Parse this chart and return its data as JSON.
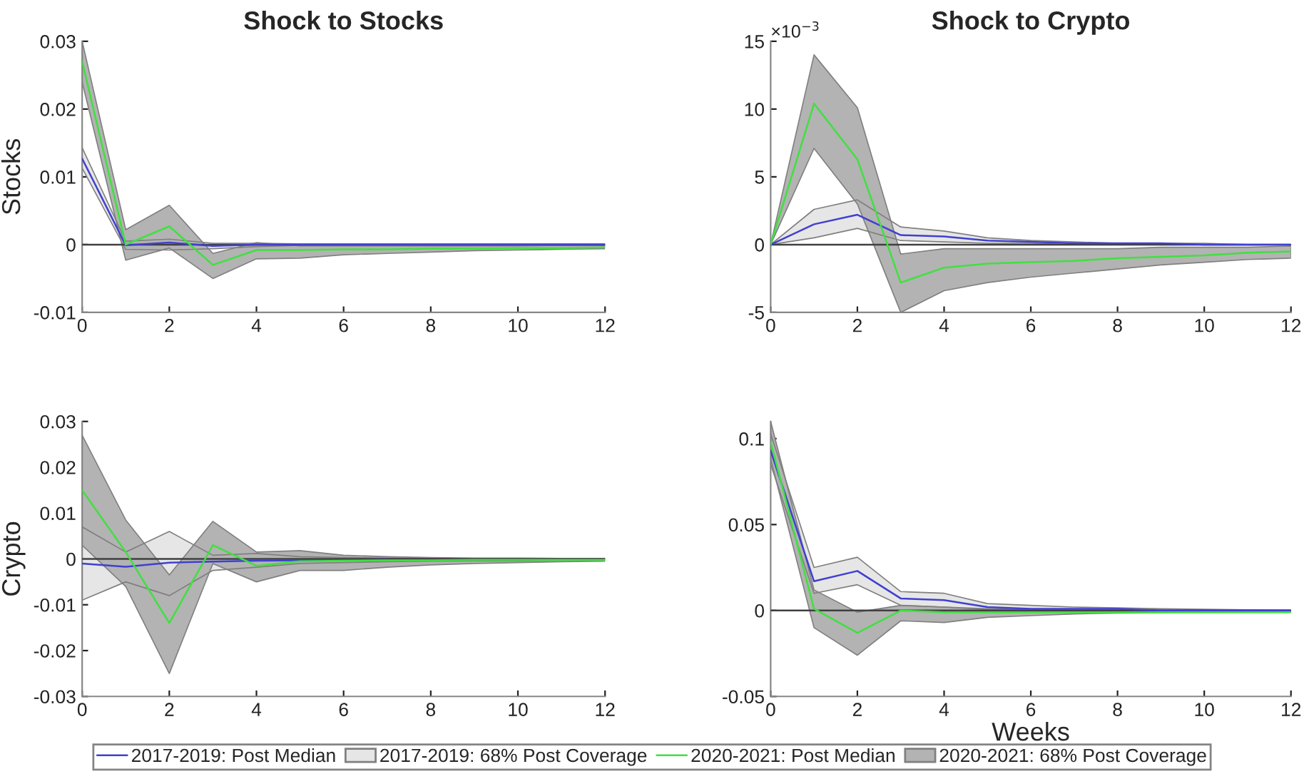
{
  "chart_data": [
    {
      "type": "line",
      "title": "Shock to Stocks",
      "ylabel": "Stocks",
      "x": [
        0,
        1,
        2,
        3,
        4,
        5,
        6,
        7,
        8,
        9,
        10,
        11,
        12
      ],
      "xlim": [
        0,
        12
      ],
      "xticks": [
        0,
        2,
        4,
        6,
        8,
        10,
        12
      ],
      "ylim": [
        -0.01,
        0.03
      ],
      "yticks": [
        -0.01,
        0,
        0.01,
        0.02,
        0.03
      ],
      "legend": "bottom",
      "grid": false,
      "ref_lines": [
        {
          "axis": "y",
          "value": 0,
          "color": "#404040"
        }
      ],
      "series": [
        {
          "name": "2017-2019: Post Median",
          "type": "line",
          "color": "#4040d0",
          "values": [
            0.0127,
            -0.0001,
            0.0003,
            -0.0002,
            0,
            0,
            0,
            0,
            0,
            0,
            0,
            0,
            0
          ],
          "lower": [
            0.0113,
            -0.0007,
            -0.0008,
            -0.0006,
            -0.0003,
            -0.0001,
            -0.0001,
            -0.0001,
            -0.0001,
            -0.0001,
            -0.0001,
            -0.0001,
            -0.0001
          ],
          "upper": [
            0.0143,
            0.0005,
            0.0008,
            0.0002,
            0.0002,
            0.0001,
            0.0001,
            0.0001,
            0.0001,
            0.0001,
            0.0001,
            0.0001,
            0.0001
          ]
        },
        {
          "name": "2017-2019: 68% Post Coverage",
          "type": "area",
          "color": "#e6e6e6",
          "values": [
            null,
            null,
            null,
            null,
            null,
            null,
            null,
            null,
            null,
            null,
            null,
            null,
            null
          ]
        },
        {
          "name": "2020-2021: Post Median",
          "type": "line",
          "color": "#40e040",
          "values": [
            0.027,
            0.0,
            0.0027,
            -0.003,
            -0.0008,
            -0.0008,
            -0.0007,
            -0.0007,
            -0.0006,
            -0.0006,
            -0.0005,
            -0.0005,
            -0.0004
          ],
          "lower": [
            0.024,
            -0.0023,
            -0.0005,
            -0.005,
            -0.0021,
            -0.002,
            -0.0015,
            -0.0013,
            -0.0011,
            -0.0009,
            -0.0008,
            -0.0007,
            -0.0006
          ],
          "upper": [
            0.03,
            0.0022,
            0.0058,
            -0.0013,
            0.0003,
            -0.0002,
            -0.0002,
            -0.0002,
            -0.0002,
            -0.0002,
            -0.0002,
            -0.0001,
            -0.0001
          ]
        },
        {
          "name": "2020-2021: 68% Post Coverage",
          "type": "area",
          "color": "#b3b3b3",
          "values": [
            null,
            null,
            null,
            null,
            null,
            null,
            null,
            null,
            null,
            null,
            null,
            null,
            null
          ]
        }
      ]
    },
    {
      "type": "line",
      "title": "Shock to Crypto",
      "x": [
        0,
        1,
        2,
        3,
        4,
        5,
        6,
        7,
        8,
        9,
        10,
        11,
        12
      ],
      "xlim": [
        0,
        12
      ],
      "xticks": [
        0,
        2,
        4,
        6,
        8,
        10,
        12
      ],
      "ylim": [
        -5,
        15
      ],
      "yticks": [
        -5,
        0,
        5,
        10,
        15
      ],
      "annotations": [
        "×10$^{−3}$"
      ],
      "grid": false,
      "ref_lines": [
        {
          "axis": "y",
          "value": 0,
          "color": "#404040"
        }
      ],
      "series": [
        {
          "type": "line",
          "color": "#4040d0",
          "values": [
            0,
            1.5,
            2.2,
            0.7,
            0.6,
            0.3,
            0.2,
            0.1,
            0.1,
            0.1,
            0,
            0,
            0
          ],
          "lower": [
            0,
            0.5,
            1.2,
            0.3,
            0.2,
            0.1,
            0.1,
            0,
            0,
            0,
            0,
            0,
            0
          ],
          "upper": [
            0,
            2.6,
            3.3,
            1.3,
            1.0,
            0.5,
            0.3,
            0.2,
            0.1,
            0.1,
            0.1,
            0,
            0
          ]
        },
        {
          "type": "area",
          "color": "#e6e6e6",
          "values": [
            null,
            null,
            null,
            null,
            null,
            null,
            null,
            null,
            null,
            null,
            null,
            null,
            null
          ]
        },
        {
          "type": "line",
          "color": "#40e040",
          "values": [
            0,
            10.4,
            6.3,
            -2.8,
            -1.7,
            -1.4,
            -1.3,
            -1.2,
            -1.0,
            -0.9,
            -0.8,
            -0.6,
            -0.5
          ],
          "lower": [
            0,
            7.1,
            3.0,
            -5.0,
            -3.4,
            -2.8,
            -2.4,
            -2.1,
            -1.8,
            -1.5,
            -1.3,
            -1.1,
            -1.0
          ],
          "upper": [
            0,
            14.0,
            10.1,
            -0.7,
            -0.3,
            -0.3,
            -0.3,
            -0.3,
            -0.3,
            -0.2,
            -0.2,
            -0.2,
            -0.1
          ]
        },
        {
          "type": "area",
          "color": "#b3b3b3",
          "values": [
            null,
            null,
            null,
            null,
            null,
            null,
            null,
            null,
            null,
            null,
            null,
            null,
            null
          ]
        }
      ]
    },
    {
      "type": "line",
      "ylabel": "Crypto",
      "x": [
        0,
        1,
        2,
        3,
        4,
        5,
        6,
        7,
        8,
        9,
        10,
        11,
        12
      ],
      "xlim": [
        0,
        12
      ],
      "xticks": [
        0,
        2,
        4,
        6,
        8,
        10,
        12
      ],
      "ylim": [
        -0.03,
        0.03
      ],
      "yticks": [
        -0.03,
        -0.02,
        -0.01,
        0,
        0.01,
        0.02,
        0.03
      ],
      "grid": false,
      "ref_lines": [
        {
          "axis": "y",
          "value": 0,
          "color": "#404040"
        }
      ],
      "series": [
        {
          "type": "line",
          "color": "#4040d0",
          "values": [
            -0.001,
            -0.0017,
            -0.0008,
            -0.0006,
            -0.0004,
            -0.0003,
            -0.0003,
            -0.0002,
            null,
            null,
            null,
            null,
            null
          ],
          "lower": [
            -0.009,
            -0.005,
            -0.008,
            -0.0025,
            -0.0018,
            -0.001,
            -0.0008,
            -0.0006,
            -0.0005,
            -0.0004,
            -0.0004,
            -0.0003,
            -0.0003
          ],
          "upper": [
            0.007,
            0.0015,
            0.006,
            0.0008,
            0.0012,
            0.0005,
            0.0003,
            0.0002,
            0.0001,
            0.0001,
            0.0001,
            0.0001,
            0.0001
          ]
        },
        {
          "type": "area",
          "color": "#e6e6e6",
          "values": [
            null,
            null,
            null,
            null,
            null,
            null,
            null,
            null,
            null,
            null,
            null,
            null,
            null
          ]
        },
        {
          "type": "line",
          "color": "#40e040",
          "values": [
            0.015,
            0.0015,
            -0.014,
            0.003,
            -0.0015,
            -0.0005,
            -0.0004,
            -0.0003,
            -0.0003,
            -0.0002,
            -0.0002,
            -0.0002,
            -0.0002
          ],
          "lower": [
            0.003,
            -0.006,
            -0.025,
            -0.001,
            -0.005,
            -0.0025,
            -0.0025,
            -0.0018,
            -0.0013,
            -0.001,
            -0.0008,
            -0.0006,
            -0.0005
          ],
          "upper": [
            0.027,
            0.0085,
            -0.0035,
            0.0082,
            0.0015,
            0.0018,
            0.0008,
            0.0005,
            0.0003,
            0.0002,
            0.0002,
            0.0001,
            0.0001
          ]
        },
        {
          "type": "area",
          "color": "#b3b3b3",
          "values": [
            null,
            null,
            null,
            null,
            null,
            null,
            null,
            null,
            null,
            null,
            null,
            null,
            null
          ]
        }
      ]
    },
    {
      "type": "line",
      "xlabel": "Weeks",
      "x": [
        0,
        1,
        2,
        3,
        4,
        5,
        6,
        7,
        8,
        9,
        10,
        11,
        12
      ],
      "xlim": [
        0,
        12
      ],
      "xticks": [
        0,
        2,
        4,
        6,
        8,
        10,
        12
      ],
      "ylim": [
        -0.05,
        0.11
      ],
      "yticks": [
        -0.05,
        0,
        0.05,
        0.1
      ],
      "grid": false,
      "ref_lines": [
        {
          "axis": "y",
          "value": 0,
          "color": "#404040"
        }
      ],
      "series": [
        {
          "type": "line",
          "color": "#4040d0",
          "values": [
            0.093,
            0.017,
            0.023,
            0.007,
            0.006,
            0.002,
            0.001,
            0.001,
            0.001,
            0,
            0,
            0,
            0
          ],
          "lower": [
            0.085,
            0.01,
            0.015,
            0.003,
            0.002,
            0.0005,
            0.0003,
            0,
            0,
            0,
            0,
            0,
            0
          ],
          "upper": [
            0.103,
            0.025,
            0.031,
            0.011,
            0.01,
            0.004,
            0.003,
            0.002,
            0.0015,
            0.001,
            0.0007,
            0.0004,
            0.0002
          ]
        },
        {
          "type": "area",
          "color": "#e6e6e6",
          "values": [
            null,
            null,
            null,
            null,
            null,
            null,
            null,
            null,
            null,
            null,
            null,
            null,
            null
          ]
        },
        {
          "type": "line",
          "color": "#40e040",
          "values": [
            0.098,
            0.001,
            -0.013,
            0.0,
            -0.001,
            -0.001,
            -0.001,
            -0.001,
            -0.001,
            -0.001,
            -0.001,
            -0.001,
            -0.001
          ],
          "lower": [
            0.088,
            -0.01,
            -0.026,
            -0.006,
            -0.007,
            -0.004,
            -0.003,
            -0.002,
            -0.0015,
            -0.0013,
            -0.0012,
            -0.0011,
            -0.001
          ],
          "upper": [
            0.11,
            0.012,
            -0.001,
            0.003,
            0.002,
            0.001,
            0.0005,
            0.0003,
            0.0002,
            0.0001,
            0.0001,
            0,
            0
          ]
        },
        {
          "type": "area",
          "color": "#b3b3b3",
          "values": [
            null,
            null,
            null,
            null,
            null,
            null,
            null,
            null,
            null,
            null,
            null,
            null,
            null
          ]
        }
      ]
    }
  ]
}
